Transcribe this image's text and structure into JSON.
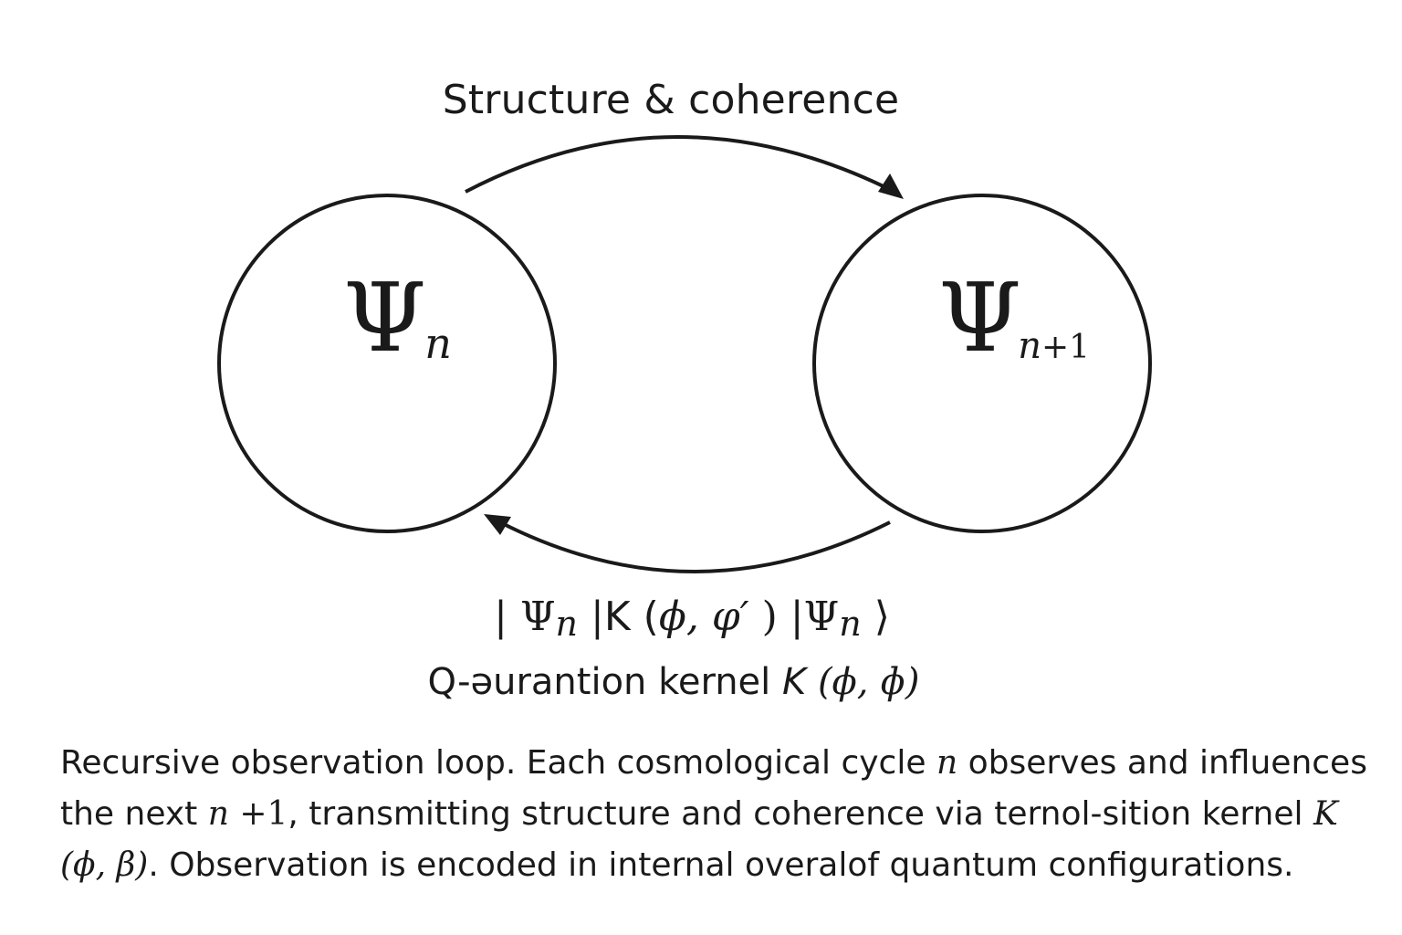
{
  "diagram": {
    "top_arrow_label": "Structure & coherence",
    "node_left": {
      "symbol": "Ψ",
      "subscript": "n"
    },
    "node_right": {
      "symbol": "Ψ",
      "subscript_var": "n",
      "subscript_rest": "+1"
    },
    "bottom_formula": {
      "bar": "|",
      "psi": "Ψ",
      "n": "n",
      "k_open": "K (",
      "args": "ϕ, φ′",
      "k_close": ")",
      "ket_end": "⟩"
    },
    "kernel_caption": {
      "text": "Q-əurantion kernel ",
      "k": "K",
      "args": "(ϕ, ɸ)"
    }
  },
  "caption": {
    "p1": "Recursive observation loop. Each cosmological cycle ",
    "n1": "n",
    "p2": " observes and influences the next ",
    "n2": "n",
    "p3": " +1",
    "p4": ", transmitting structure and coherence via ternol-sition kernel ",
    "k": "K",
    "args": " (ϕ, β)",
    "p5": ". Observation is encoded in internal overalof quantum configurations."
  }
}
